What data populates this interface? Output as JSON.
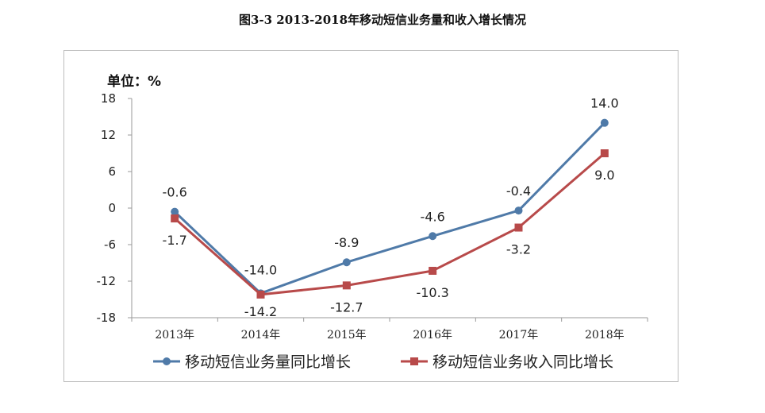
{
  "title": "图3-3  2013-2018年移动短信业务量和收入增长情况",
  "chart_data": {
    "type": "line",
    "unit_label": "单位：%",
    "categories": [
      "2013年",
      "2014年",
      "2015年",
      "2016年",
      "2017年",
      "2018年"
    ],
    "ylim": [
      -18,
      18
    ],
    "yticks": [
      "18",
      "12",
      "6",
      "0",
      "-6",
      "-12",
      "-18"
    ],
    "grid": false,
    "legend_position": "bottom",
    "series": [
      {
        "name": "移动短信业务量同比增长",
        "color": "#4f7aa8",
        "marker": "circle",
        "values": [
          -0.6,
          -14.0,
          -8.9,
          -4.6,
          -0.4,
          14.0
        ],
        "labels": [
          "-0.6",
          "-14.0",
          "-8.9",
          "-4.6",
          "-0.4",
          "14.0"
        ]
      },
      {
        "name": "移动短信业务收入同比增长",
        "color": "#b84a4a",
        "marker": "square",
        "values": [
          -1.7,
          -14.2,
          -12.7,
          -10.3,
          -3.2,
          9.0
        ],
        "labels": [
          "-1.7",
          "-14.2",
          "-12.7",
          "-10.3",
          "-3.2",
          "9.0"
        ]
      }
    ]
  }
}
